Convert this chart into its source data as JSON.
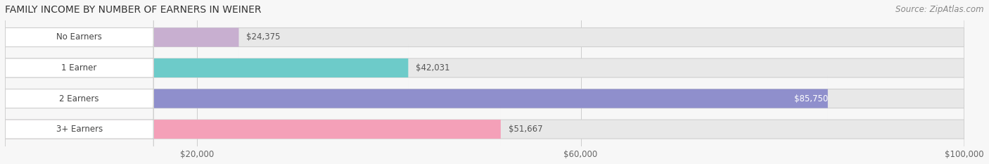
{
  "title": "FAMILY INCOME BY NUMBER OF EARNERS IN WEINER",
  "source": "Source: ZipAtlas.com",
  "categories": [
    "No Earners",
    "1 Earner",
    "2 Earners",
    "3+ Earners"
  ],
  "values": [
    24375,
    42031,
    85750,
    51667
  ],
  "bar_colors": [
    "#c8afd0",
    "#6dcbc9",
    "#8f8fcc",
    "#f4a0b8"
  ],
  "track_color": "#e8e8e8",
  "track_edge_color": "#d0d0d0",
  "value_labels": [
    "$24,375",
    "$42,031",
    "$85,750",
    "$51,667"
  ],
  "value_label_inside": [
    false,
    false,
    true,
    false
  ],
  "xmin": 0,
  "xmax": 100000,
  "xticks": [
    20000,
    60000,
    100000
  ],
  "xtick_labels": [
    "$20,000",
    "$60,000",
    "$100,000"
  ],
  "label_fontsize": 8.5,
  "value_fontsize": 8.5,
  "title_fontsize": 10,
  "source_fontsize": 8.5,
  "bar_height": 0.62,
  "background_color": "#f7f7f7"
}
